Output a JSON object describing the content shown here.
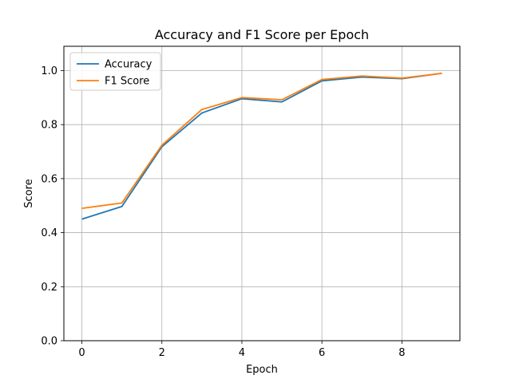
{
  "chart_data": {
    "type": "line",
    "title": "Accuracy and F1 Score per Epoch",
    "xlabel": "Epoch",
    "ylabel": "Score",
    "x": [
      0,
      1,
      2,
      3,
      4,
      5,
      6,
      7,
      8,
      9
    ],
    "series": [
      {
        "name": "Accuracy",
        "color": "#1f77b4",
        "values": [
          0.45,
          0.497,
          0.718,
          0.843,
          0.896,
          0.884,
          0.962,
          0.976,
          0.97,
          0.99
        ]
      },
      {
        "name": "F1 Score",
        "color": "#ff7f0e",
        "values": [
          0.49,
          0.51,
          0.724,
          0.856,
          0.9,
          0.892,
          0.967,
          0.98,
          0.972,
          0.99
        ]
      }
    ],
    "xlim": [
      -0.45,
      9.45
    ],
    "ylim": [
      0.0,
      1.09
    ],
    "xticks": [
      0,
      2,
      4,
      6,
      8
    ],
    "xtick_labels": [
      "0",
      "2",
      "4",
      "6",
      "8"
    ],
    "yticks": [
      0.0,
      0.2,
      0.4,
      0.6,
      0.8,
      1.0
    ],
    "ytick_labels": [
      "0.0",
      "0.2",
      "0.4",
      "0.6",
      "0.8",
      "1.0"
    ],
    "grid": true,
    "legend_position": "top-left"
  }
}
